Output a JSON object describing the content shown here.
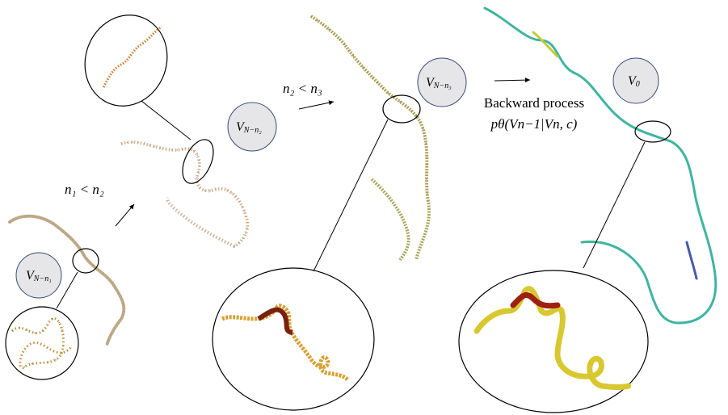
{
  "stages": [
    {
      "label": "V",
      "subscript": "N−n₁"
    },
    {
      "label": "V",
      "subscript": "N−n₂"
    },
    {
      "label": "V",
      "subscript": "N−n₃"
    },
    {
      "label": "V",
      "subscript": "0"
    }
  ],
  "transitions": [
    {
      "text": "n₁ < n₂"
    },
    {
      "text": "n₂ < n₃"
    }
  ],
  "backward": {
    "title": "Backward process",
    "formula": "pθ(Vn−1|Vn, c)"
  }
}
